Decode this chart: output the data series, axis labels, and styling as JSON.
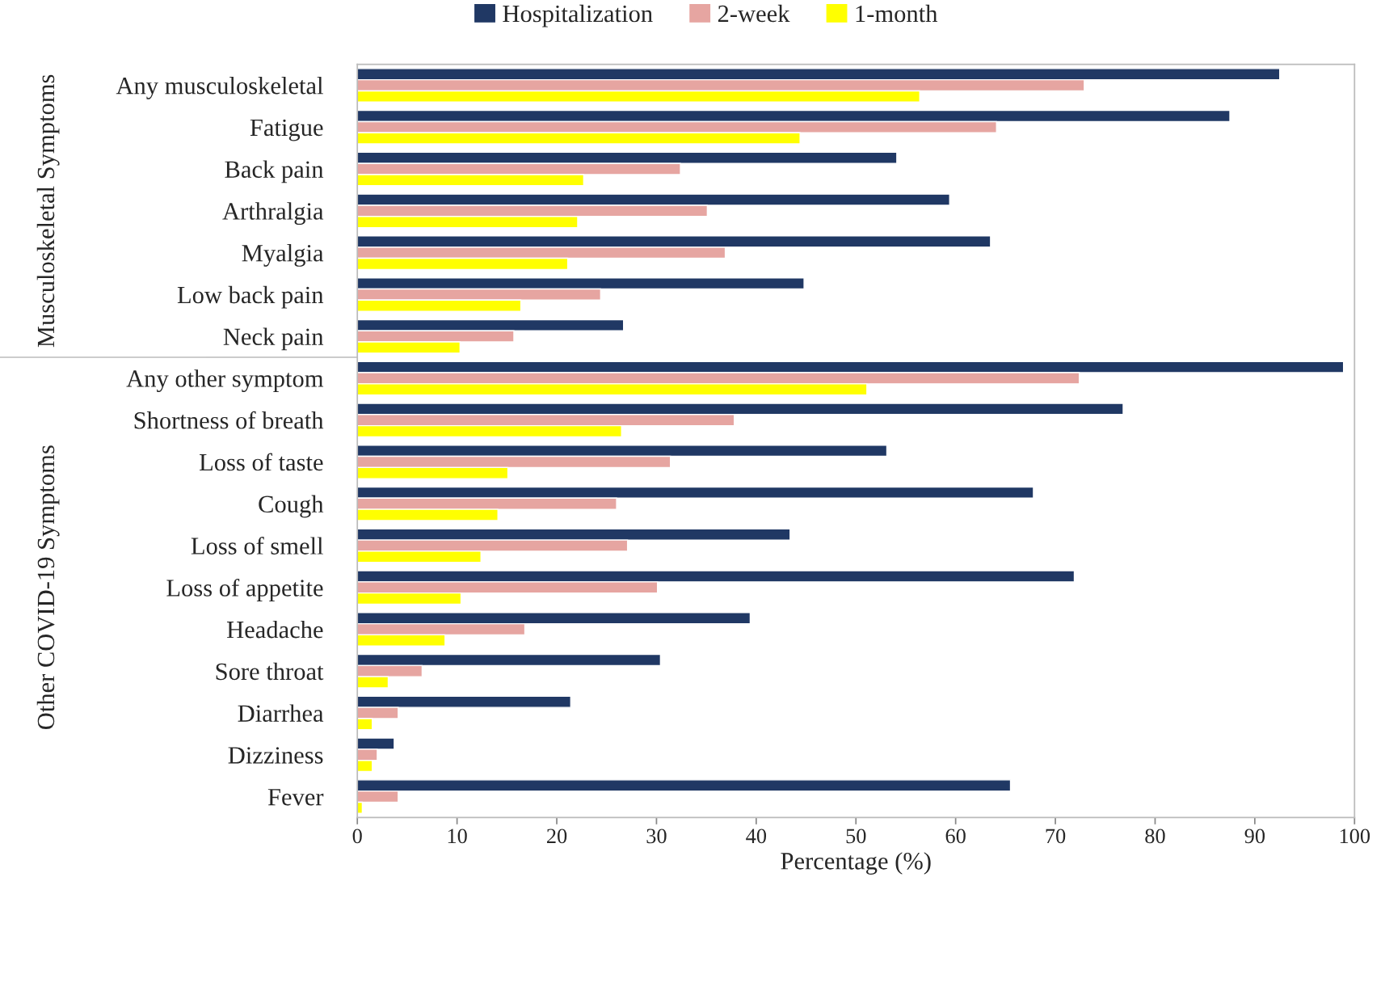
{
  "chart_data": {
    "type": "bar",
    "orientation": "horizontal",
    "xlabel": "Percentage (%)",
    "categories": [
      "Any musculoskeletal",
      "Fatigue",
      "Back pain",
      "Arthralgia",
      "Myalgia",
      "Low back pain",
      "Neck pain",
      "Any other symptom",
      "Shortness of breath",
      "Loss of taste",
      "Cough",
      "Loss of smell",
      "Loss of appetite",
      "Headache",
      "Sore throat",
      "Diarrhea",
      "Dizziness",
      "Fever"
    ],
    "series": [
      {
        "name": "Hospitalization",
        "color": "#203864",
        "values": [
          92.5,
          87.5,
          54.1,
          59.4,
          63.5,
          44.8,
          26.7,
          98.9,
          76.8,
          53.1,
          67.8,
          43.4,
          71.9,
          39.4,
          30.4,
          21.4,
          3.7,
          65.5
        ]
      },
      {
        "name": "2-week",
        "color": "#e6a5a1",
        "values": [
          72.9,
          64.1,
          32.4,
          35.1,
          36.9,
          24.4,
          15.7,
          72.4,
          37.8,
          31.4,
          26.0,
          27.1,
          30.1,
          16.8,
          6.5,
          4.1,
          2.0,
          4.1
        ]
      },
      {
        "name": "1-month",
        "color": "#ffff00",
        "values": [
          56.4,
          44.4,
          22.7,
          22.1,
          21.1,
          16.4,
          10.3,
          51.1,
          26.5,
          15.1,
          14.1,
          12.4,
          10.4,
          8.8,
          3.1,
          1.5,
          1.5,
          0.5
        ]
      }
    ],
    "xlim": [
      0,
      100
    ],
    "xticks": [
      0,
      10,
      20,
      30,
      40,
      50,
      60,
      70,
      80,
      90,
      100
    ],
    "grid": false,
    "legend": "top",
    "annotations": [
      "Musculoskeletal Symptoms",
      "Other COVID-19 Symptoms"
    ]
  }
}
